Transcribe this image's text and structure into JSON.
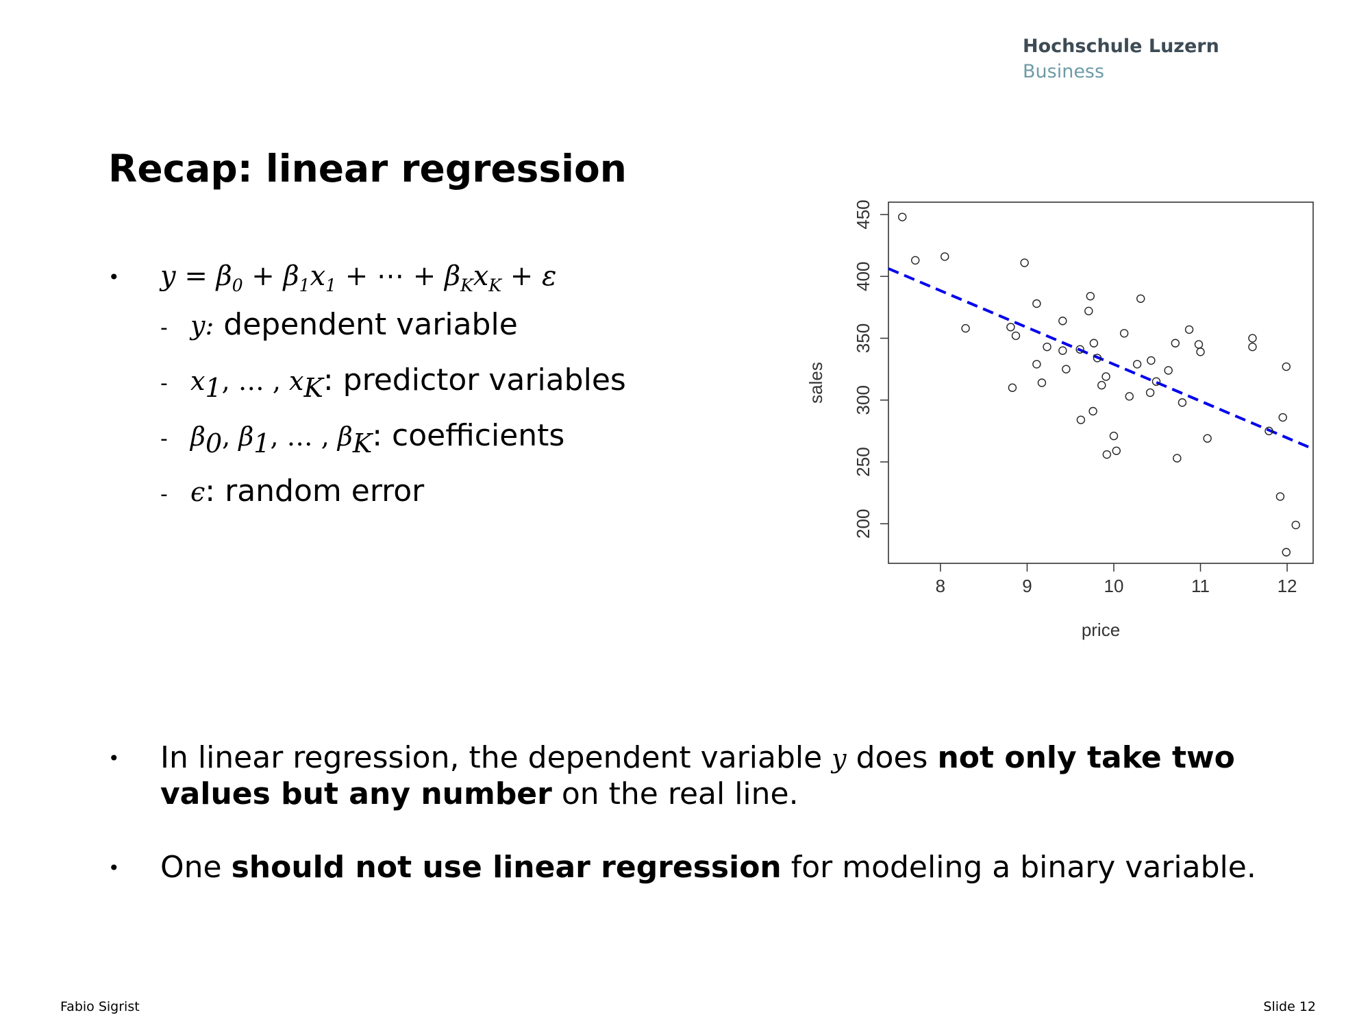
{
  "logo": {
    "line1": "Hochschule Luzern",
    "line2": "Business"
  },
  "title": "Recap: linear regression",
  "bullet_symbol": "•",
  "formula": {
    "y": "y",
    "eq": " = ",
    "b0": "β",
    "b0sub": "0",
    "plus1": " + ",
    "b1": "β",
    "b1sub": "1",
    "x1": "x",
    "x1sub": "1",
    "plus2": " + ⋯ + ",
    "bK": "β",
    "bKsub": "K",
    "xK": "x",
    "xKsub": "K",
    "plus3": " + ε"
  },
  "definitions": [
    {
      "dash": "-",
      "symbol": "y:",
      "text": " dependent variable"
    },
    {
      "dash": "-",
      "sym_a": "x",
      "sub_a": "1",
      "mid": ", … , ",
      "sym_b": "x",
      "sub_b": "K",
      "text": ": predictor variables"
    },
    {
      "dash": "-",
      "s1": "β",
      "sub1": "0",
      "c1": ", ",
      "s2": "β",
      "sub2": "1",
      "c2": ", … , ",
      "s3": "β",
      "sub3": "K",
      "text": ": coefficients"
    },
    {
      "dash": "-",
      "symbol": "ϵ",
      "text": ": random error"
    }
  ],
  "bullets": [
    {
      "t1": "In linear regression, the dependent variable ",
      "sym": "y",
      "t2": " does ",
      "b1": "not only take two values but any number",
      "t3": " on the real line."
    },
    {
      "t1": "One ",
      "b1": "should not use linear regression",
      "t2": " for modeling a binary variable."
    }
  ],
  "footer": {
    "author": "Fabio Sigrist",
    "slide": "Slide 12"
  },
  "chart_data": {
    "type": "scatter",
    "xlabel": "price",
    "ylabel": "sales",
    "xlim": [
      7.4,
      12.3
    ],
    "ylim": [
      168,
      460
    ],
    "xticks": [
      8,
      9,
      10,
      11,
      12
    ],
    "yticks": [
      200,
      250,
      300,
      350,
      400,
      450
    ],
    "grid": false,
    "points": {
      "x": [
        7.56,
        7.71,
        8.05,
        8.29,
        8.81,
        8.83,
        8.87,
        8.97,
        9.11,
        9.11,
        9.17,
        9.23,
        9.41,
        9.41,
        9.45,
        9.61,
        9.62,
        9.71,
        9.73,
        9.76,
        9.77,
        9.81,
        9.86,
        9.91,
        9.92,
        10.0,
        10.03,
        10.12,
        10.18,
        10.27,
        10.31,
        10.42,
        10.43,
        10.49,
        10.63,
        10.71,
        10.73,
        10.79,
        10.87,
        10.98,
        11.0,
        11.08,
        11.6,
        11.6,
        11.79,
        11.92,
        11.95,
        11.99,
        11.99,
        12.1
      ],
      "y": [
        448,
        413,
        416,
        358,
        359,
        310,
        352,
        411,
        378,
        329,
        314,
        343,
        364,
        340,
        325,
        341,
        284,
        372,
        384,
        291,
        346,
        334,
        312,
        319,
        256,
        271,
        259,
        354,
        303,
        329,
        382,
        306,
        332,
        315,
        324,
        346,
        253,
        298,
        357,
        345,
        339,
        269,
        350,
        343,
        275,
        222,
        286,
        327,
        177,
        199
      ]
    },
    "regression_line": {
      "x": [
        7.4,
        12.3
      ],
      "y": [
        406.3,
        260.5
      ],
      "style": "dashed",
      "color": "#0000ee"
    },
    "point_color": "#222222"
  }
}
